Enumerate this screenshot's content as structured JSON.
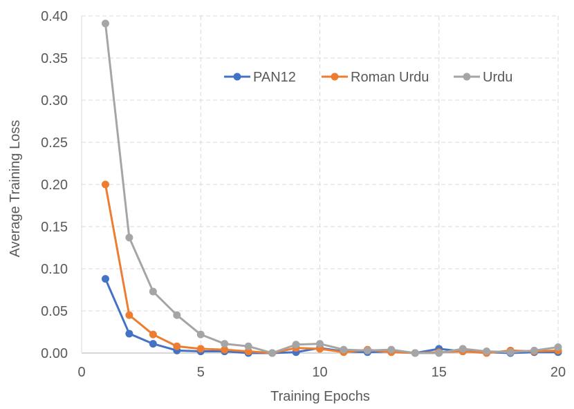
{
  "chart_data": {
    "type": "line",
    "title": "",
    "xlabel": "Training Epochs",
    "ylabel": "Average Training Loss",
    "xlim": [
      0,
      20
    ],
    "ylim": [
      0,
      0.4
    ],
    "x_ticks": [
      "0",
      "5",
      "10",
      "15",
      "20"
    ],
    "y_ticks": [
      "0.00",
      "0.05",
      "0.10",
      "0.15",
      "0.20",
      "0.25",
      "0.30",
      "0.35",
      "0.40"
    ],
    "grid": "dashed",
    "legend": "top-right",
    "x": [
      1,
      2,
      3,
      4,
      5,
      6,
      7,
      8,
      9,
      10,
      11,
      12,
      13,
      14,
      15,
      16,
      17,
      18,
      19,
      20
    ],
    "series": [
      {
        "name": "PAN12",
        "color": "#4472C4",
        "values": [
          0.088,
          0.023,
          0.011,
          0.003,
          0.002,
          0.002,
          0.0,
          0.0,
          0.001,
          0.006,
          0.002,
          0.001,
          0.002,
          0.0,
          0.005,
          0.002,
          0.001,
          0.0,
          0.001,
          0.001
        ]
      },
      {
        "name": "Roman Urdu",
        "color": "#ED7D31",
        "values": [
          0.2,
          0.045,
          0.022,
          0.008,
          0.005,
          0.004,
          0.002,
          0.0,
          0.006,
          0.005,
          0.001,
          0.004,
          0.001,
          0.0,
          0.001,
          0.002,
          0.0,
          0.003,
          0.002,
          0.003
        ]
      },
      {
        "name": "Urdu",
        "color": "#A5A5A5",
        "values": [
          0.391,
          0.137,
          0.073,
          0.045,
          0.022,
          0.011,
          0.008,
          0.0,
          0.01,
          0.011,
          0.004,
          0.003,
          0.004,
          0.0,
          0.0,
          0.005,
          0.002,
          0.001,
          0.003,
          0.007
        ]
      }
    ]
  }
}
